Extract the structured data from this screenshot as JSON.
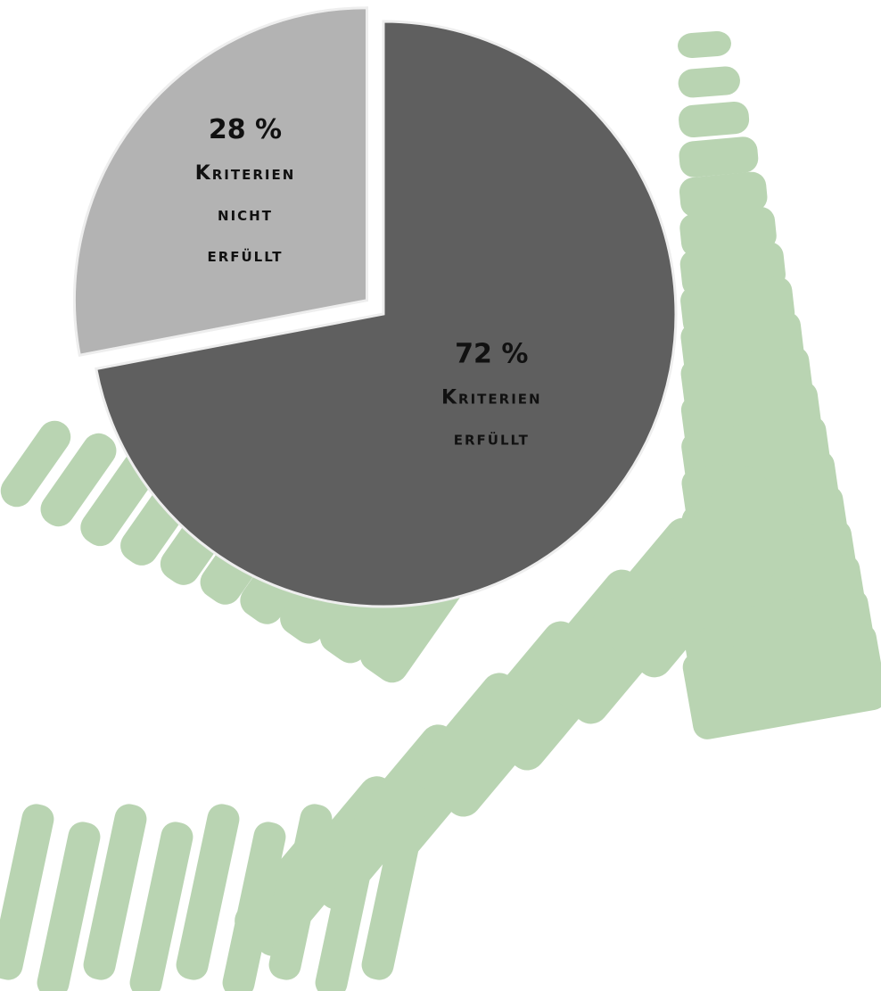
{
  "colors": {
    "background": "#ffffff",
    "decoration": "#b9d4b2",
    "slice_erfuellt": "#5f5f5f",
    "slice_nicht_erfuellt": "#b3b3b3",
    "slice_border": "#eeeeee",
    "label_text": "#111111"
  },
  "chart_data": {
    "type": "pie",
    "title": "",
    "slices": [
      {
        "label": "Kriterien erfüllt",
        "value": 72,
        "value_text": "72 %",
        "label_lines": [
          "Kriterien",
          "erfüllt"
        ],
        "color": "#5f5f5f",
        "exploded": false
      },
      {
        "label": "Kriterien nicht erfüllt",
        "value": 28,
        "value_text": "28 %",
        "label_lines": [
          "Kriterien",
          "nicht",
          "erfüllt"
        ],
        "color": "#b3b3b3",
        "exploded": true
      }
    ],
    "start_angle": "12 o'clock",
    "direction": "clockwise",
    "legend": "none",
    "data_labels": "inside"
  }
}
